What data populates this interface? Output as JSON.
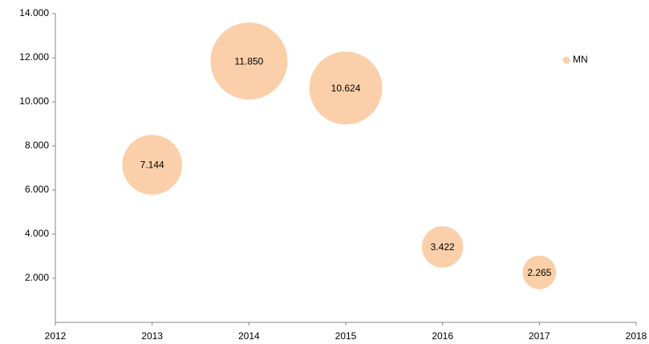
{
  "chart_data": {
    "type": "bubble",
    "x": [
      2013,
      2014,
      2015,
      2016,
      2017
    ],
    "series": [
      {
        "name": "MN",
        "color": "#fbcfa9",
        "values": [
          7144,
          11850,
          10624,
          3422,
          2265
        ],
        "sizes": [
          7144,
          11850,
          10624,
          3422,
          2265
        ],
        "value_labels": [
          "7.144",
          "11.850",
          "10.624",
          "3.422",
          "2.265"
        ]
      }
    ],
    "xlim": [
      2012,
      2018
    ],
    "xticks": [
      2012,
      2013,
      2014,
      2015,
      2016,
      2017,
      2018
    ],
    "ylim": [
      0,
      14000
    ],
    "yticks": [
      {
        "value": 2000,
        "label": "2.000"
      },
      {
        "value": 4000,
        "label": "4.000"
      },
      {
        "value": 6000,
        "label": "6.000"
      },
      {
        "value": 8000,
        "label": "8.000"
      },
      {
        "value": 10000,
        "label": "10.000"
      },
      {
        "value": 12000,
        "label": "12.000"
      },
      {
        "value": 14000,
        "label": "14.000"
      }
    ],
    "legend": "right"
  }
}
